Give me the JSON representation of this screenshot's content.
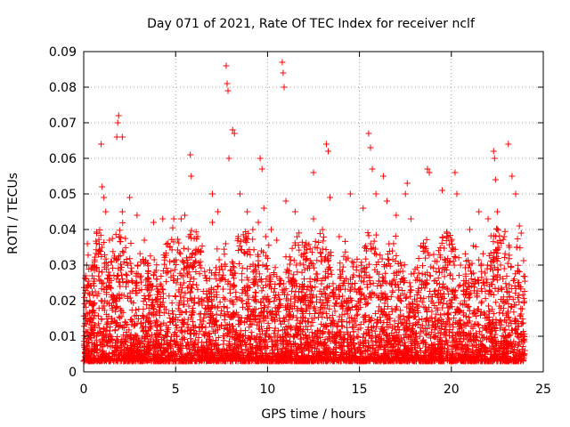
{
  "chart_data": {
    "type": "scatter",
    "title": "Day 071 of 2021, Rate Of TEC Index for receiver nclf",
    "xlabel": "GPS time / hours",
    "ylabel": "ROTI / TECUs",
    "xlim": [
      0,
      25
    ],
    "ylim": [
      0,
      0.09
    ],
    "x_ticks": [
      0,
      5,
      10,
      15,
      20,
      25
    ],
    "x_tick_labels": [
      "0",
      "5",
      "10",
      "15",
      "20",
      "25"
    ],
    "y_ticks": [
      0,
      0.01,
      0.02,
      0.03,
      0.04,
      0.05,
      0.06,
      0.07,
      0.08,
      0.09
    ],
    "y_tick_labels": [
      "0",
      "0.01",
      "0.02",
      "0.03",
      "0.04",
      "0.05",
      "0.06",
      "0.07",
      "0.08",
      "0.09"
    ],
    "grid": true,
    "marker": "+",
    "color": "#ff0000",
    "series": [
      {
        "name": "ROTI",
        "points": [
          [
            0.1,
            0.027
          ],
          [
            0.15,
            0.02
          ],
          [
            0.2,
            0.036
          ],
          [
            0.5,
            0.012
          ],
          [
            0.8,
            0.033
          ],
          [
            0.95,
            0.064
          ],
          [
            1.0,
            0.052
          ],
          [
            1.1,
            0.049
          ],
          [
            1.2,
            0.045
          ],
          [
            1.4,
            0.037
          ],
          [
            1.8,
            0.066
          ],
          [
            1.85,
            0.07
          ],
          [
            1.9,
            0.072
          ],
          [
            2.1,
            0.066
          ],
          [
            2.1,
            0.045
          ],
          [
            2.5,
            0.049
          ],
          [
            2.9,
            0.044
          ],
          [
            3.3,
            0.037
          ],
          [
            3.8,
            0.042
          ],
          [
            4.3,
            0.043
          ],
          [
            4.9,
            0.043
          ],
          [
            5.3,
            0.043
          ],
          [
            5.5,
            0.044
          ],
          [
            5.8,
            0.061
          ],
          [
            5.85,
            0.055
          ],
          [
            6.2,
            0.038
          ],
          [
            7.0,
            0.042
          ],
          [
            7.0,
            0.05
          ],
          [
            7.3,
            0.045
          ],
          [
            7.75,
            0.086
          ],
          [
            7.8,
            0.081
          ],
          [
            7.85,
            0.079
          ],
          [
            7.9,
            0.06
          ],
          [
            8.1,
            0.068
          ],
          [
            8.2,
            0.067
          ],
          [
            8.5,
            0.05
          ],
          [
            8.9,
            0.045
          ],
          [
            9.2,
            0.04
          ],
          [
            9.5,
            0.042
          ],
          [
            9.6,
            0.06
          ],
          [
            9.7,
            0.057
          ],
          [
            9.8,
            0.046
          ],
          [
            9.9,
            0.038
          ],
          [
            10.2,
            0.04
          ],
          [
            10.5,
            0.037
          ],
          [
            10.8,
            0.087
          ],
          [
            10.85,
            0.084
          ],
          [
            10.9,
            0.08
          ],
          [
            11.0,
            0.048
          ],
          [
            11.5,
            0.045
          ],
          [
            12.0,
            0.035
          ],
          [
            12.5,
            0.056
          ],
          [
            12.5,
            0.043
          ],
          [
            13.2,
            0.064
          ],
          [
            13.3,
            0.062
          ],
          [
            13.4,
            0.049
          ],
          [
            13.9,
            0.038
          ],
          [
            14.5,
            0.05
          ],
          [
            15.2,
            0.046
          ],
          [
            15.5,
            0.067
          ],
          [
            15.6,
            0.063
          ],
          [
            15.7,
            0.057
          ],
          [
            15.9,
            0.05
          ],
          [
            16.3,
            0.055
          ],
          [
            16.5,
            0.048
          ],
          [
            17.0,
            0.044
          ],
          [
            17.5,
            0.05
          ],
          [
            17.6,
            0.053
          ],
          [
            17.8,
            0.043
          ],
          [
            18.7,
            0.057
          ],
          [
            18.8,
            0.056
          ],
          [
            19.5,
            0.051
          ],
          [
            19.8,
            0.03
          ],
          [
            20.2,
            0.056
          ],
          [
            20.3,
            0.05
          ],
          [
            20.5,
            0.03
          ],
          [
            21.0,
            0.04
          ],
          [
            21.5,
            0.045
          ],
          [
            22.0,
            0.043
          ],
          [
            22.3,
            0.062
          ],
          [
            22.35,
            0.06
          ],
          [
            22.4,
            0.054
          ],
          [
            22.5,
            0.045
          ],
          [
            23.1,
            0.064
          ],
          [
            23.3,
            0.055
          ],
          [
            23.5,
            0.05
          ],
          [
            23.7,
            0.041
          ],
          [
            23.8,
            0.039
          ],
          [
            24.0,
            0.006
          ]
        ]
      }
    ]
  }
}
